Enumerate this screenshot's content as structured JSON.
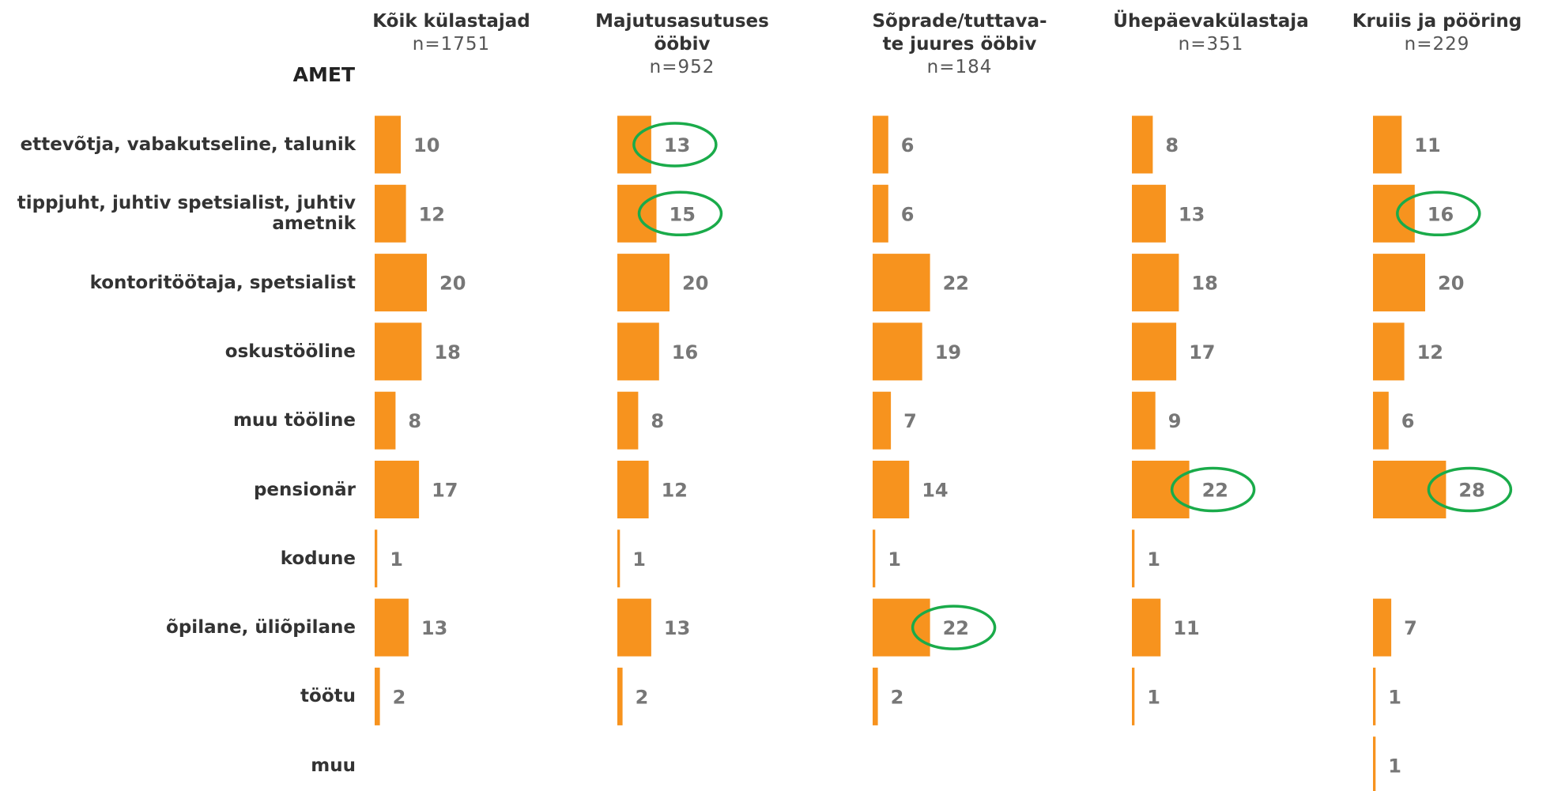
{
  "chart_data": {
    "type": "bar",
    "axis_title": "AMET",
    "color": "#f7931e",
    "highlight_color": "#1aab4a",
    "categories": [
      "ettevõtja, vabakutseline, talunik",
      "tippjuht, juhtiv spetsialist, juhtiv ametnik",
      "kontoritöötaja, spetsialist",
      "oskustööline",
      "muu tööline",
      "pensionär",
      "kodune",
      "õpilane, üliõpilane",
      "töötu",
      "muu"
    ],
    "series": [
      {
        "name": [
          "Kõik külastajad"
        ],
        "n": "n=1751",
        "values": [
          10,
          12,
          20,
          18,
          8,
          17,
          1,
          13,
          2,
          null
        ],
        "highlighted": []
      },
      {
        "name": [
          "Majutusasutuses",
          "ööbiv"
        ],
        "n": "n=952",
        "values": [
          13,
          15,
          20,
          16,
          8,
          12,
          1,
          13,
          2,
          null
        ],
        "highlighted": [
          0,
          1
        ]
      },
      {
        "name": [
          "Sõprade/tuttava-",
          "te juures ööbiv"
        ],
        "n": "n=184",
        "values": [
          6,
          6,
          22,
          19,
          7,
          14,
          1,
          22,
          2,
          null
        ],
        "highlighted": [
          7
        ]
      },
      {
        "name": [
          "Ühepäevakülastaja"
        ],
        "n": "n=351",
        "values": [
          8,
          13,
          18,
          17,
          9,
          22,
          1,
          11,
          1,
          null
        ],
        "highlighted": [
          5
        ]
      },
      {
        "name": [
          "Kruiis ja pööring"
        ],
        "n": "n=229",
        "values": [
          11,
          16,
          20,
          12,
          6,
          28,
          null,
          7,
          1,
          1
        ],
        "highlighted": [
          1,
          5
        ]
      }
    ]
  }
}
